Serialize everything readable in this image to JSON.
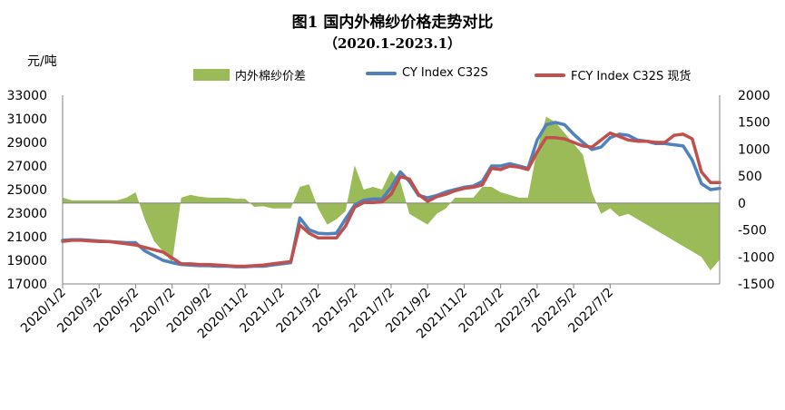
{
  "header": {
    "title": "图1  国内外棉纱价格走势对比",
    "subtitle": "（2020.1-2023.1）",
    "unit": "元/吨"
  },
  "legend": {
    "diff": "内外棉纱价差",
    "cy": "CY Index C32S",
    "fcy": "FCY Index C32S 现货"
  },
  "colors": {
    "diff": "#9bbb59",
    "cy": "#4f81bd",
    "fcy": "#c0504d"
  },
  "chart_data": {
    "type": "line",
    "title": "图1  国内外棉纱价格走势对比",
    "subtitle": "（2020.1-2023.1）",
    "ylabel": "元/吨",
    "ylim": [
      17000,
      33000
    ],
    "y2lim": [
      -1500,
      2000
    ],
    "y_ticks": [
      33000,
      31000,
      29000,
      27000,
      25000,
      23000,
      21000,
      19000,
      17000
    ],
    "y2_ticks": [
      2000,
      1500,
      1000,
      500,
      0,
      -500,
      -1000,
      -1500
    ],
    "x_ticks": [
      "2020/1/2",
      "2020/3/2",
      "2020/5/2",
      "2020/7/2",
      "2020/9/2",
      "2020/11/2",
      "2021/1/2",
      "2021/3/2",
      "2021/5/2",
      "2021/7/2",
      "2021/9/2",
      "2021/11/2",
      "2022/1/2",
      "2022/3/2",
      "2022/5/2",
      "2022/7/2"
    ],
    "x": [
      0,
      0.5,
      1,
      1.5,
      2,
      2.5,
      3,
      3.5,
      4,
      4.5,
      5,
      5.5,
      6,
      6.5,
      7,
      7.5,
      8,
      8.5,
      9,
      9.5,
      10,
      10.5,
      11,
      11.5,
      12,
      12.5,
      13,
      13.5,
      14,
      14.5,
      15,
      15.5,
      16,
      16.5,
      17,
      17.5,
      18,
      18.5,
      19,
      19.5,
      20,
      20.5,
      21,
      21.5,
      22,
      22.5,
      23,
      23.5,
      24,
      24.5,
      25,
      25.5,
      26,
      26.5,
      27,
      27.5,
      28,
      28.5,
      29,
      29.5,
      30,
      30.5,
      31,
      31.5,
      32,
      32.5,
      33,
      33.5,
      34,
      34.5,
      35,
      35.5,
      36
    ],
    "series": [
      {
        "name": "CY Index C32S",
        "axis": "left",
        "values": [
          20700,
          20750,
          20750,
          20700,
          20650,
          20600,
          20550,
          20500,
          20500,
          19800,
          19400,
          19000,
          18800,
          18650,
          18600,
          18550,
          18550,
          18500,
          18500,
          18450,
          18450,
          18500,
          18500,
          18600,
          18700,
          18800,
          22600,
          21600,
          21300,
          21250,
          21300,
          22500,
          23700,
          24100,
          24200,
          24200,
          25200,
          26500,
          25700,
          24500,
          24300,
          24500,
          24800,
          25000,
          25200,
          25300,
          25700,
          27000,
          27000,
          27200,
          27000,
          26800,
          29200,
          30500,
          30700,
          30500,
          29700,
          29000,
          28400,
          28600,
          29400,
          29700,
          29600,
          29200,
          29100,
          28900,
          28900,
          28800,
          28700,
          27500,
          25500,
          25000,
          25100
        ]
      },
      {
        "name": "FCY Index C32S 现货",
        "axis": "left",
        "values": [
          20600,
          20700,
          20700,
          20650,
          20600,
          20600,
          20500,
          20400,
          20300,
          20100,
          19900,
          19700,
          19200,
          18700,
          18700,
          18650,
          18650,
          18600,
          18550,
          18500,
          18500,
          18550,
          18600,
          18700,
          18800,
          18900,
          22000,
          21300,
          20900,
          20900,
          20900,
          21900,
          23500,
          23900,
          23900,
          23950,
          24600,
          26100,
          25900,
          24600,
          24000,
          24400,
          24600,
          24900,
          25100,
          25200,
          25400,
          26800,
          26700,
          27000,
          26900,
          26700,
          28200,
          29400,
          29400,
          29300,
          29000,
          28700,
          28600,
          29200,
          29800,
          29500,
          29200,
          29100,
          29100,
          29000,
          29000,
          29600,
          29700,
          29300,
          26500,
          25600,
          25600
        ]
      },
      {
        "name": "内外棉纱价差",
        "axis": "right",
        "values": [
          100,
          50,
          50,
          50,
          50,
          50,
          50,
          100,
          200,
          -300,
          -700,
          -900,
          -1100,
          100,
          150,
          120,
          100,
          100,
          100,
          80,
          80,
          -70,
          -60,
          -100,
          -100,
          -100,
          300,
          350,
          -100,
          -400,
          -300,
          -150,
          700,
          250,
          300,
          250,
          600,
          400,
          -200,
          -300,
          -400,
          -200,
          -100,
          100,
          100,
          100,
          300,
          300,
          200,
          150,
          100,
          100,
          1000,
          1600,
          1500,
          1300,
          1100,
          900,
          200,
          -200,
          -100,
          -250,
          -200,
          -300,
          -400,
          -500,
          -600,
          -700,
          -800,
          -900,
          -1000,
          -1250,
          -1050
        ]
      }
    ]
  }
}
